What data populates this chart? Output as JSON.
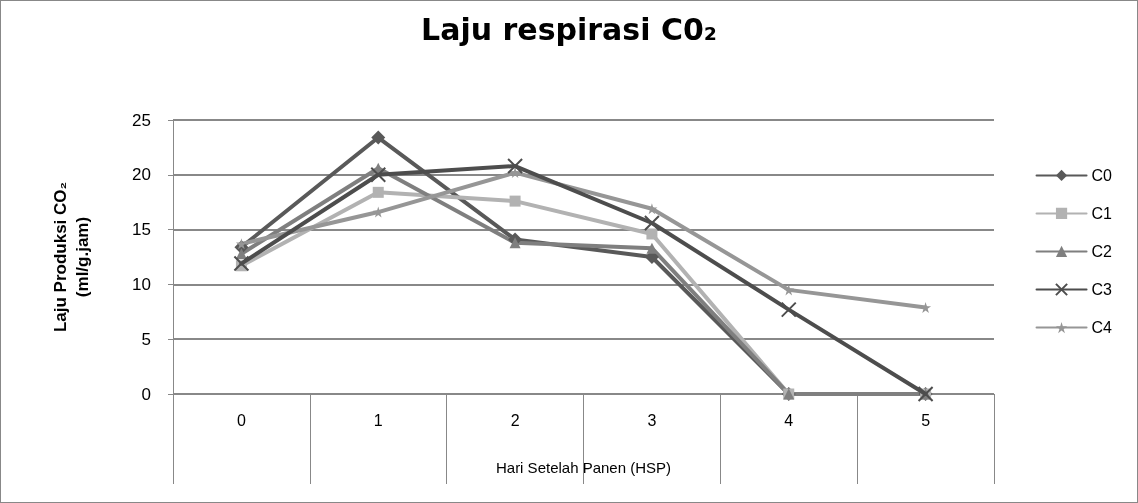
{
  "chart_data": {
    "type": "line",
    "title": "Laju respirasi C0₂",
    "xlabel": "Hari Setelah Panen (HSP)",
    "ylabel": "Laju Produksi CO₂\n(ml/g.jam)",
    "categories": [
      "0",
      "1",
      "2",
      "3",
      "4",
      "5"
    ],
    "ylim": [
      0,
      25
    ],
    "yticks": [
      0,
      5,
      10,
      15,
      20,
      25
    ],
    "grid": "y",
    "legend": "right",
    "line_style": "solid",
    "series": [
      {
        "name": "C0",
        "color": "#595959",
        "marker": "diamond",
        "values": [
          13.4,
          23.4,
          14.1,
          12.5,
          0,
          0
        ]
      },
      {
        "name": "C1",
        "color": "#b2b2b2",
        "marker": "square",
        "values": [
          11.7,
          18.4,
          17.6,
          14.6,
          0,
          0
        ]
      },
      {
        "name": "C2",
        "color": "#7f7f7f",
        "marker": "triangle",
        "values": [
          12.8,
          20.6,
          13.8,
          13.3,
          0,
          0
        ]
      },
      {
        "name": "C3",
        "color": "#4d4d4d",
        "marker": "cross",
        "values": [
          11.9,
          20.0,
          20.8,
          15.6,
          7.7,
          0
        ]
      },
      {
        "name": "C4",
        "color": "#969696",
        "marker": "star",
        "values": [
          13.7,
          16.6,
          20.2,
          16.9,
          9.5,
          7.9
        ]
      }
    ]
  }
}
